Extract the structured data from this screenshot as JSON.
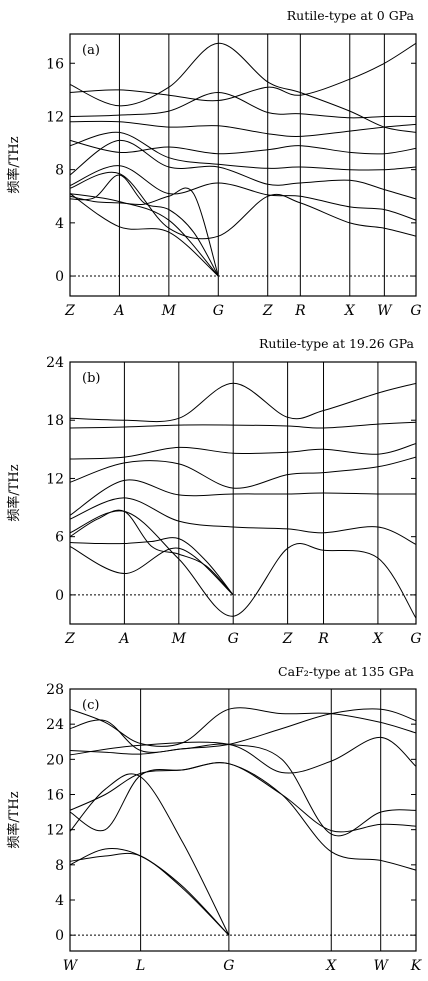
{
  "chart_data": [
    {
      "type": "line",
      "title": "Rutile-type at 0 GPa",
      "panel_label": "(a)",
      "ylabel": "频率/THz",
      "ylim": [
        -1.5,
        18.2
      ],
      "yticks": [
        0,
        4,
        8,
        12,
        16
      ],
      "xlabels": [
        "Z",
        "A",
        "M",
        "G",
        "Z",
        "R",
        "X",
        "W",
        "G"
      ],
      "xpos": [
        0,
        1,
        2,
        3,
        4,
        4.66,
        5.66,
        6.36,
        7
      ],
      "series": [
        {
          "x": [
            0,
            1,
            2,
            3
          ],
          "y": [
            6.2,
            3.7,
            3.3,
            0
          ]
        },
        {
          "x": [
            0,
            1,
            2,
            3
          ],
          "y": [
            6.2,
            5.6,
            4.2,
            0
          ]
        },
        {
          "x": [
            0,
            0.5,
            1,
            1.5,
            2,
            2.5,
            3
          ],
          "y": [
            6.0,
            5.6,
            5.5,
            5.4,
            6.0,
            6.2,
            0
          ]
        },
        {
          "x": [
            0,
            0.5,
            1,
            1.5,
            2,
            2.5,
            3
          ],
          "y": [
            5.8,
            5.9,
            7.6,
            5.5,
            5.0,
            3.3,
            0
          ]
        },
        {
          "x": [
            0,
            1,
            2,
            3,
            4,
            4.66,
            5.66,
            6.36,
            7
          ],
          "y": [
            6.6,
            7.7,
            3.6,
            3.0,
            6.0,
            5.5,
            4.0,
            3.6,
            3.0
          ]
        },
        {
          "x": [
            0,
            1,
            2,
            3,
            4,
            4.66,
            5.66,
            6.36,
            7
          ],
          "y": [
            6.8,
            8.3,
            6.2,
            7.0,
            6.1,
            6.0,
            5.2,
            5.0,
            4.2
          ]
        },
        {
          "x": [
            0,
            1,
            2,
            3,
            4,
            4.66,
            5.66,
            6.36,
            7
          ],
          "y": [
            7.6,
            10.2,
            8.2,
            8.2,
            6.9,
            7.0,
            7.2,
            6.5,
            5.8
          ]
        },
        {
          "x": [
            0,
            1,
            2,
            3,
            4,
            4.66,
            5.66,
            6.36,
            7
          ],
          "y": [
            9.8,
            10.8,
            8.9,
            8.4,
            8.1,
            8.2,
            8.0,
            8.0,
            8.2
          ]
        },
        {
          "x": [
            0,
            1,
            2,
            3,
            4,
            4.66,
            5.66,
            6.36,
            7
          ],
          "y": [
            10.2,
            9.3,
            9.7,
            9.2,
            9.5,
            9.8,
            9.3,
            9.2,
            9.6
          ]
        },
        {
          "x": [
            0,
            1,
            2,
            3,
            4,
            4.66,
            5.66,
            6.36,
            7
          ],
          "y": [
            11.6,
            11.6,
            11.2,
            11.3,
            10.7,
            10.5,
            10.9,
            11.2,
            11.4
          ]
        },
        {
          "x": [
            0,
            1,
            2,
            3,
            4,
            4.66,
            5.66,
            6.36,
            7
          ],
          "y": [
            12.0,
            12.1,
            12.4,
            13.8,
            12.3,
            12.2,
            11.9,
            12.0,
            12.0
          ]
        },
        {
          "x": [
            0,
            1,
            2,
            3,
            4,
            4.66,
            5.66,
            6.36,
            7
          ],
          "y": [
            13.8,
            14.0,
            13.6,
            13.2,
            14.2,
            13.6,
            14.8,
            16.0,
            17.5
          ]
        },
        {
          "x": [
            0,
            1,
            2,
            3,
            4,
            4.66,
            5.66,
            6.36,
            7
          ],
          "y": [
            14.4,
            12.8,
            14.2,
            17.5,
            14.6,
            13.8,
            12.4,
            11.2,
            10.8
          ]
        }
      ]
    },
    {
      "type": "line",
      "title": "Rutile-type at 19.26 GPa",
      "panel_label": "(b)",
      "ylabel": "频率/THz",
      "ylim": [
        -3.0,
        24.0
      ],
      "yticks": [
        0,
        6,
        12,
        18,
        24
      ],
      "xlabels": [
        "Z",
        "A",
        "M",
        "G",
        "Z",
        "R",
        "X",
        "G"
      ],
      "xpos": [
        0,
        1,
        2,
        3,
        4,
        4.66,
        5.66,
        6.36
      ],
      "series": [
        {
          "x": [
            0,
            1,
            2,
            3
          ],
          "y": [
            5.0,
            2.2,
            4.8,
            0
          ]
        },
        {
          "x": [
            0,
            0.5,
            1,
            1.5,
            2,
            2.5,
            3
          ],
          "y": [
            5.4,
            5.3,
            5.3,
            5.5,
            5.8,
            3.5,
            0
          ]
        },
        {
          "x": [
            0,
            0.5,
            1,
            1.5,
            2,
            2.5,
            3
          ],
          "y": [
            6.0,
            7.8,
            8.6,
            5.0,
            4.2,
            3.0,
            0
          ]
        },
        {
          "x": [
            0,
            1,
            2,
            3,
            4,
            4.66,
            5.66,
            6.36
          ],
          "y": [
            6.4,
            8.6,
            3.7,
            -2.2,
            4.8,
            4.6,
            3.8,
            -2.4
          ]
        },
        {
          "x": [
            0,
            1,
            2,
            3,
            4,
            4.66,
            5.66,
            6.36
          ],
          "y": [
            7.8,
            10.0,
            7.6,
            7.0,
            6.8,
            6.4,
            7.0,
            5.2
          ]
        },
        {
          "x": [
            0,
            1,
            2,
            3,
            4,
            4.66,
            5.66,
            6.36
          ],
          "y": [
            8.2,
            11.8,
            10.3,
            10.4,
            10.4,
            10.5,
            10.4,
            10.4
          ]
        },
        {
          "x": [
            0,
            1,
            2,
            3,
            4,
            4.66,
            5.66,
            6.36
          ],
          "y": [
            11.6,
            13.6,
            13.5,
            11.0,
            12.4,
            12.6,
            13.2,
            14.2
          ]
        },
        {
          "x": [
            0,
            1,
            2,
            3,
            4,
            4.66,
            5.66,
            6.36
          ],
          "y": [
            14.0,
            14.2,
            15.2,
            14.6,
            14.7,
            15.0,
            14.5,
            15.6
          ]
        },
        {
          "x": [
            0,
            1,
            2,
            3,
            4,
            4.66,
            5.66,
            6.36
          ],
          "y": [
            17.2,
            17.3,
            17.5,
            17.5,
            17.4,
            17.2,
            17.6,
            17.8
          ]
        },
        {
          "x": [
            0,
            1,
            2,
            3,
            4,
            4.66,
            5.66,
            6.36
          ],
          "y": [
            18.2,
            18.0,
            18.2,
            21.8,
            18.3,
            19.0,
            20.8,
            21.8
          ]
        }
      ]
    },
    {
      "type": "line",
      "title": "CaF₂-type at 135 GPa",
      "panel_label": "(c)",
      "ylabel": "频率/THz",
      "ylim": [
        -1.8,
        28.0
      ],
      "yticks": [
        0,
        4,
        8,
        12,
        16,
        20,
        24,
        28
      ],
      "xlabels": [
        "W",
        "L",
        "G",
        "X",
        "W",
        "K"
      ],
      "xpos": [
        0,
        1,
        2.25,
        3.7,
        4.4,
        4.9
      ],
      "series": [
        {
          "x": [
            0,
            0.5,
            1,
            1.6,
            2.25
          ],
          "y": [
            8.0,
            9.8,
            9.0,
            5.5,
            0
          ]
        },
        {
          "x": [
            0,
            0.5,
            1,
            1.6,
            2.25
          ],
          "y": [
            8.4,
            9.0,
            9.0,
            5.3,
            0
          ]
        },
        {
          "x": [
            0,
            0.5,
            1,
            1.6,
            2.25
          ],
          "y": [
            11.8,
            16.6,
            18.0,
            10.5,
            0
          ]
        },
        {
          "x": [
            0,
            0.5,
            1,
            1.6,
            2.25,
            3,
            3.7,
            4.4,
            4.9
          ],
          "y": [
            14.0,
            12.0,
            18.2,
            18.8,
            19.5,
            16.0,
            9.5,
            8.5,
            7.4
          ]
        },
        {
          "x": [
            0,
            0.5,
            1,
            1.6,
            2.25,
            3,
            3.7,
            4.4,
            4.9
          ],
          "y": [
            14.2,
            16.0,
            18.4,
            18.8,
            19.5,
            16.0,
            11.9,
            12.6,
            12.4
          ]
        },
        {
          "x": [
            0,
            0.5,
            1,
            1.6,
            2.25,
            3,
            3.7,
            4.4,
            4.9
          ],
          "y": [
            21.0,
            20.8,
            20.6,
            21.2,
            21.7,
            23.5,
            25.2,
            25.7,
            24.4
          ]
        },
        {
          "x": [
            0,
            0.5,
            1,
            1.6,
            2.25,
            3,
            3.7,
            4.4,
            4.9
          ],
          "y": [
            23.5,
            24.4,
            21.0,
            21.2,
            21.7,
            20.0,
            11.5,
            14.0,
            14.2
          ]
        },
        {
          "x": [
            0,
            0.5,
            1,
            1.6,
            2.25,
            3,
            3.7,
            4.4,
            4.9
          ],
          "y": [
            25.7,
            24.2,
            21.8,
            21.9,
            25.7,
            25.2,
            25.2,
            24.2,
            23.0
          ]
        },
        {
          "x": [
            0,
            1,
            2.25,
            3,
            3.7,
            4.4,
            4.9
          ],
          "y": [
            20.5,
            21.6,
            21.7,
            18.5,
            19.8,
            22.5,
            19.2
          ]
        }
      ]
    }
  ]
}
